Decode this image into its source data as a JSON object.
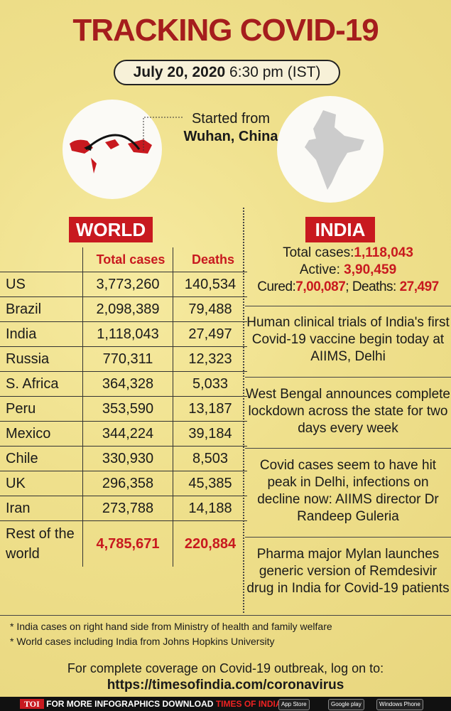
{
  "header": {
    "title": "TRACKING COVID-19",
    "date": "July 20, 2020",
    "time": "6:30 pm (IST)"
  },
  "map": {
    "origin_label": "Started from",
    "origin_place": "Wuhan, China"
  },
  "world": {
    "label": "WORLD",
    "columns": [
      "Total cases",
      "Deaths"
    ],
    "rows": [
      [
        "US",
        "3,773,260",
        "140,534"
      ],
      [
        "Brazil",
        "2,098,389",
        "79,488"
      ],
      [
        "India",
        "1,118,043",
        "27,497"
      ],
      [
        "Russia",
        "770,311",
        "12,323"
      ],
      [
        "S. Africa",
        "364,328",
        "5,033"
      ],
      [
        "Peru",
        "353,590",
        "13,187"
      ],
      [
        "Mexico",
        "344,224",
        "39,184"
      ],
      [
        "Chile",
        "330,930",
        "8,503"
      ],
      [
        "UK",
        "296,358",
        "45,385"
      ],
      [
        "Iran",
        "273,788",
        "14,188"
      ],
      [
        "Rest of the world",
        "4,785,671",
        "220,884"
      ]
    ]
  },
  "india": {
    "label": "INDIA",
    "stats": [
      {
        "label": "Total cases:",
        "value": "1,118,043"
      },
      {
        "label": "Active:",
        "value": "3,90,459"
      },
      {
        "label": "Cured:",
        "value": "7,00,087"
      },
      {
        "label": "; Deaths:",
        "value": "27,497"
      }
    ],
    "news": [
      "Human clinical trials of India's first Covid-19 vaccine begin today at AIIMS, Delhi",
      "West Bengal announces complete lockdown across the state for two days every week",
      "Covid cases seem to have hit peak in Delhi, infections on decline now: AIIMS director Dr Randeep Guleria",
      "Pharma major Mylan launches generic version of Remdesivir drug in India for Covid-19 patients"
    ]
  },
  "notes": [
    "* India cases on right hand side from Ministry of health and family welfare",
    "* World cases including India from Johns Hopkins University"
  ],
  "footer": {
    "coverage_text": "For complete coverage on Covid-19 outbreak, log on to:",
    "url": "https://timesofindia.com/coronavirus",
    "brand": "TOI",
    "banner": "FOR MORE INFOGRAPHICS DOWNLOAD",
    "app": "TIMES OF INDIA APP",
    "badges": [
      "App Store",
      "Google play",
      "Windows Phone"
    ]
  }
}
